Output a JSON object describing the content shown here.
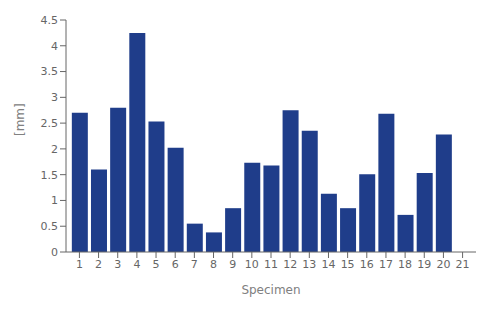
{
  "chart_data": {
    "type": "bar",
    "x": [
      1,
      2,
      3,
      4,
      5,
      6,
      7,
      8,
      9,
      10,
      11,
      12,
      13,
      14,
      15,
      16,
      17,
      18,
      19,
      20
    ],
    "values": [
      2.7,
      1.6,
      2.8,
      4.25,
      2.53,
      2.02,
      0.55,
      0.38,
      0.85,
      1.73,
      1.68,
      2.75,
      2.35,
      1.13,
      0.85,
      1.51,
      2.68,
      0.72,
      1.53,
      2.28
    ],
    "color": "#1f3d8a",
    "xlabel": "Specimen",
    "ylabel": "[mm]",
    "xlim": [
      0.3,
      21.7
    ],
    "xticks": [
      1,
      2,
      3,
      4,
      5,
      6,
      7,
      8,
      9,
      10,
      11,
      12,
      13,
      14,
      15,
      16,
      17,
      18,
      19,
      20,
      21
    ],
    "ylim": [
      0,
      4.5
    ],
    "yticks": [
      0,
      0.5,
      1,
      1.5,
      2,
      2.5,
      3,
      3.5,
      4,
      4.5
    ],
    "grid": false
  }
}
